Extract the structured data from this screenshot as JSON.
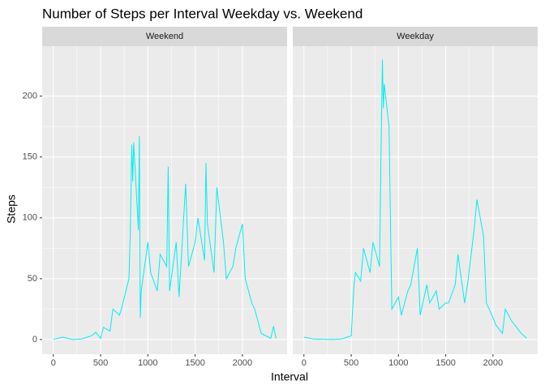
{
  "chart_data": {
    "type": "line",
    "title": "Number of Steps per Interval Weekday vs. Weekend",
    "x_label": "Interval",
    "y_label": "Steps",
    "xlim": [
      -118,
      2473
    ],
    "ylim": [
      -12,
      241
    ],
    "xticks": [
      0,
      500,
      1000,
      1500,
      2000
    ],
    "yticks": [
      0,
      50,
      100,
      150,
      200
    ],
    "grid": true,
    "series": [
      {
        "name": "Weekend",
        "color": "#00eeee",
        "x": [
          0,
          100,
          200,
          300,
          400,
          450,
          500,
          530,
          600,
          630,
          700,
          730,
          800,
          815,
          830,
          840,
          850,
          900,
          910,
          920,
          930,
          1000,
          1030,
          1100,
          1130,
          1200,
          1215,
          1230,
          1300,
          1330,
          1400,
          1430,
          1500,
          1530,
          1600,
          1615,
          1630,
          1700,
          1730,
          1800,
          1830,
          1900,
          1930,
          2000,
          2030,
          2100,
          2130,
          2200,
          2300,
          2330,
          2355
        ],
        "values": [
          0.2,
          2,
          0,
          0.5,
          3,
          6,
          1,
          10,
          7,
          25,
          20,
          28,
          50,
          90,
          160,
          130,
          162,
          90,
          167,
          18,
          40,
          80,
          55,
          40,
          70,
          60,
          142,
          40,
          80,
          35,
          128,
          60,
          80,
          100,
          65,
          145,
          95,
          55,
          125,
          80,
          50,
          60,
          75,
          95,
          50,
          30,
          25,
          5,
          1,
          11,
          1
        ]
      },
      {
        "name": "Weekday",
        "color": "#00eeee",
        "x": [
          0,
          100,
          200,
          300,
          400,
          500,
          530,
          545,
          600,
          630,
          700,
          730,
          800,
          815,
          830,
          840,
          850,
          900,
          915,
          930,
          1000,
          1030,
          1100,
          1130,
          1200,
          1230,
          1300,
          1330,
          1400,
          1430,
          1500,
          1530,
          1600,
          1630,
          1700,
          1730,
          1800,
          1830,
          1900,
          1930,
          2000,
          2030,
          2100,
          2130,
          2200,
          2300,
          2330,
          2355
        ],
        "values": [
          2,
          0.5,
          0.2,
          0.1,
          0.5,
          3,
          45,
          55,
          48,
          75,
          55,
          80,
          60,
          150,
          230,
          190,
          210,
          175,
          100,
          25,
          35,
          20,
          40,
          45,
          75,
          20,
          45,
          30,
          40,
          25,
          30,
          30,
          45,
          70,
          30,
          45,
          90,
          115,
          85,
          30,
          18,
          12,
          5,
          25,
          15,
          5,
          3,
          1
        ]
      }
    ]
  }
}
